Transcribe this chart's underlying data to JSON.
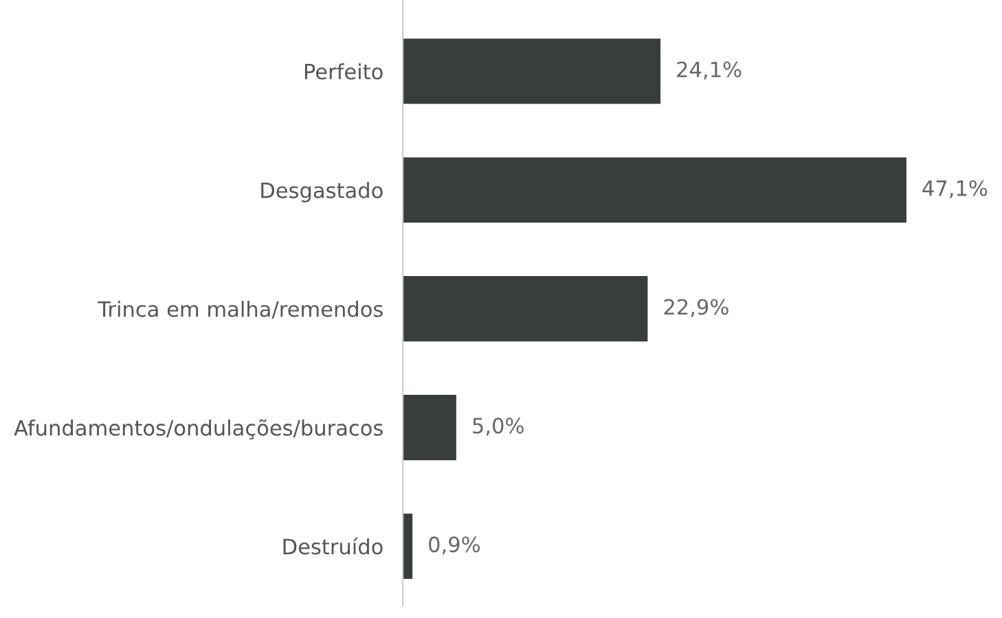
{
  "chart_data": {
    "type": "bar",
    "orientation": "horizontal",
    "categories": [
      "Perfeito",
      "Desgastado",
      "Trinca em malha/remendos",
      "Afundamentos/ondulações/buracos",
      "Destruído"
    ],
    "values": [
      24.1,
      47.1,
      22.9,
      5.0,
      0.9
    ],
    "value_labels": [
      "24,1%",
      "47,1%",
      "22,9%",
      "5,0%",
      "0,9%"
    ],
    "color": "#3a3d3d",
    "grid": false,
    "legend": false
  }
}
